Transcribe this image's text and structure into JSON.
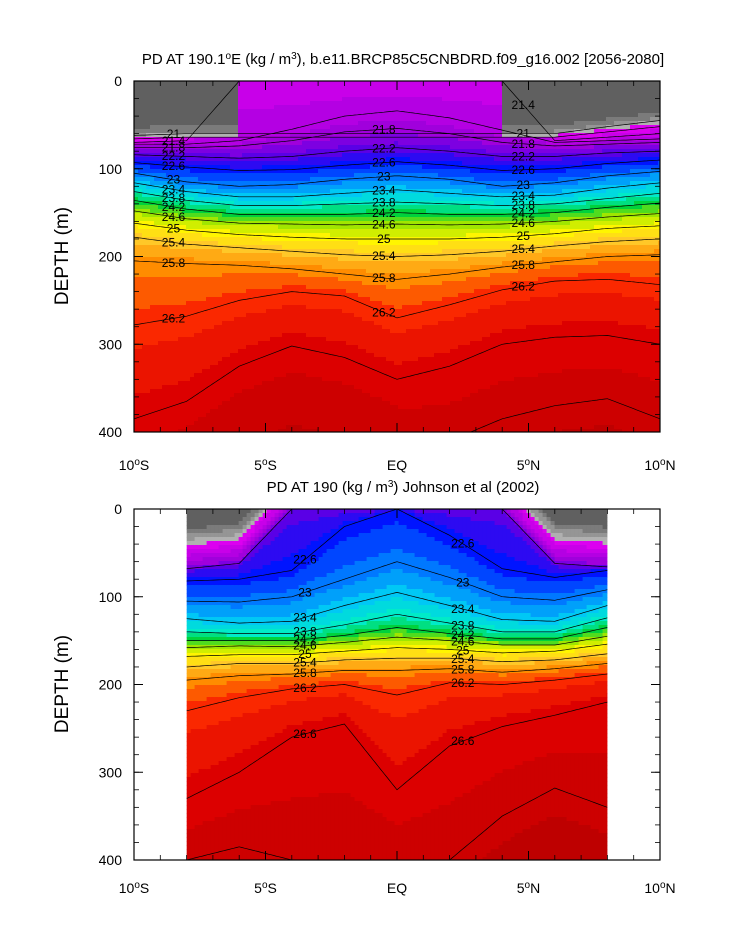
{
  "chart_data": [
    {
      "type": "contour",
      "title": "PD AT 190.1°E (kg / m³), b.e11.BRCP85C5CNBDRD.f09_g16.002 [2056-2080]",
      "title_parts": {
        "pre": "PD AT 190.1",
        "sup1": "o",
        "mid": "E (kg / m",
        "sup2": "3",
        "post": "), b.e11.BRCP85C5CNBDRD.f09_g16.002 [2056-2080]"
      },
      "xlabel": "",
      "ylabel": "DEPTH (m)",
      "xlim": [
        -10,
        10
      ],
      "ylim": [
        400,
        0
      ],
      "x_data_range": [
        -10,
        10
      ],
      "x_ticks": [
        {
          "value": -10,
          "num": "10",
          "sup": "o",
          "hem": "S"
        },
        {
          "value": -5,
          "num": "5",
          "sup": "o",
          "hem": "S"
        },
        {
          "value": 0,
          "num": "EQ",
          "sup": "",
          "hem": ""
        },
        {
          "value": 5,
          "num": "5",
          "sup": "o",
          "hem": "N"
        },
        {
          "value": 10,
          "num": "10",
          "sup": "o",
          "hem": "N"
        }
      ],
      "y_ticks": [
        0,
        100,
        200,
        300,
        400
      ],
      "levels": [
        21,
        21.2,
        21.4,
        21.6,
        21.8,
        22,
        22.2,
        22.4,
        22.6,
        22.8,
        23,
        23.2,
        23.4,
        23.6,
        23.8,
        24,
        24.2,
        24.4,
        24.6,
        24.8,
        25,
        25.2,
        25.4,
        25.6,
        25.8,
        26,
        26.2,
        26.4,
        26.6,
        26.8
      ],
      "isopycnal_depths": {
        "x": [
          -10,
          -8,
          -6,
          -4,
          -2,
          0,
          2,
          4,
          6,
          8,
          10
        ],
        "contours": [
          {
            "level": 21.0,
            "depths": [
              62,
              60,
              null,
              null,
              null,
              null,
              null,
              null,
              60,
              52,
              45
            ]
          },
          {
            "level": 21.2,
            "depths": [
              66,
              64,
              null,
              null,
              null,
              null,
              null,
              null,
              64,
              58,
              52
            ]
          },
          {
            "level": 21.4,
            "depths": [
              70,
              68,
              0,
              0,
              0,
              0,
              0,
              0,
              68,
              64,
              60
            ]
          },
          {
            "level": 21.6,
            "depths": [
              72,
              72,
              68,
              55,
              40,
              34,
              42,
              56,
              70,
              68,
              66
            ]
          },
          {
            "level": 21.8,
            "depths": [
              76,
              76,
              74,
              68,
              58,
              54,
              60,
              70,
              74,
              72,
              70
            ]
          },
          {
            "level": 22.2,
            "depths": [
              84,
              86,
              88,
              86,
              80,
              76,
              80,
              86,
              86,
              82,
              80
            ]
          },
          {
            "level": 22.6,
            "depths": [
              93,
              98,
              102,
              101,
              96,
              92,
              96,
              102,
              100,
              94,
              90
            ]
          },
          {
            "level": 23.0,
            "depths": [
              105,
              115,
              120,
              118,
              112,
              108,
              112,
              120,
              116,
              108,
              103
            ]
          },
          {
            "level": 23.4,
            "depths": [
              116,
              126,
              132,
              132,
              128,
              124,
              128,
              132,
              130,
              122,
              116
            ]
          },
          {
            "level": 23.8,
            "depths": [
              126,
              136,
              142,
              142,
              140,
              138,
              140,
              142,
              140,
              134,
              128
            ]
          },
          {
            "level": 24.2,
            "depths": [
              136,
              146,
              152,
              152,
              152,
              150,
              152,
              152,
              150,
              144,
              139
            ]
          },
          {
            "level": 24.6,
            "depths": [
              148,
              157,
              162,
              163,
              164,
              163,
              164,
              163,
              160,
              155,
              151
            ]
          },
          {
            "level": 25.0,
            "depths": [
              162,
              170,
              175,
              178,
              180,
              180,
              180,
              178,
              174,
              168,
              165
            ]
          },
          {
            "level": 25.4,
            "depths": [
              178,
              186,
              190,
              194,
              198,
              200,
              198,
              194,
              188,
              183,
              180
            ]
          },
          {
            "level": 25.8,
            "depths": [
              205,
              208,
              210,
              214,
              220,
              226,
              220,
              212,
              206,
              200,
              198
            ]
          },
          {
            "level": 26.2,
            "depths": [
              278,
              268,
              250,
              240,
              245,
              270,
              255,
              238,
              228,
              226,
              232
            ]
          },
          {
            "level": 26.6,
            "depths": [
              385,
              365,
              325,
              302,
              315,
              340,
              325,
              300,
              292,
              290,
              300
            ]
          },
          {
            "level": 26.8,
            "depths": [
              null,
              null,
              null,
              null,
              null,
              null,
              410,
              385,
              370,
              362,
              385
            ]
          }
        ]
      },
      "contour_labels": [
        "21",
        "21",
        "21.4",
        "21.4",
        "21.8",
        "21.8",
        "21.8",
        "22.2",
        "22.2",
        "22.2",
        "22.6",
        "22.6",
        "22.6",
        "23",
        "23",
        "23",
        "23.4",
        "23.4",
        "23.4",
        "23.8",
        "23.8",
        "23.8",
        "24.2",
        "24.2",
        "24.2",
        "24.6",
        "24.6",
        "24.6",
        "25",
        "25",
        "25",
        "25.4",
        "25.4",
        "25.4",
        "25.8",
        "25.8",
        "25.8",
        "26.2",
        "26.2",
        "26.2"
      ]
    },
    {
      "type": "contour",
      "title": "PD AT 190 (kg / m³) Johnson et al (2002)",
      "title_parts": {
        "pre": "PD AT 190 (kg / m",
        "sup1": "",
        "mid": "",
        "sup2": "3",
        "post": ") Johnson et al (2002)"
      },
      "xlabel": "",
      "ylabel": "DEPTH (m)",
      "xlim": [
        -10,
        10
      ],
      "ylim": [
        400,
        0
      ],
      "x_data_range": [
        -8,
        8
      ],
      "x_ticks": [
        {
          "value": -10,
          "num": "10",
          "sup": "o",
          "hem": "S"
        },
        {
          "value": -5,
          "num": "5",
          "sup": "o",
          "hem": "S"
        },
        {
          "value": 0,
          "num": "EQ",
          "sup": "",
          "hem": ""
        },
        {
          "value": 5,
          "num": "5",
          "sup": "o",
          "hem": "N"
        },
        {
          "value": 10,
          "num": "10",
          "sup": "o",
          "hem": "N"
        }
      ],
      "y_ticks": [
        0,
        100,
        200,
        300,
        400
      ],
      "levels": [
        21.4,
        21.6,
        21.8,
        22,
        22.2,
        22.4,
        22.6,
        22.8,
        23,
        23.2,
        23.4,
        23.6,
        23.8,
        24,
        24.2,
        24.4,
        24.6,
        24.8,
        25,
        25.2,
        25.4,
        25.6,
        25.8,
        26,
        26.2,
        26.4,
        26.6,
        26.8
      ],
      "isopycnal_depths": {
        "x": [
          -8,
          -6,
          -4,
          -2,
          0,
          2,
          4,
          6,
          8
        ],
        "contours": [
          {
            "level": 22.2,
            "depths": [
              68,
              62,
              0,
              0,
              0,
              0,
              0,
              62,
              66
            ]
          },
          {
            "level": 22.6,
            "depths": [
              82,
              80,
              70,
              20,
              0,
              30,
              68,
              78,
              70
            ]
          },
          {
            "level": 23.0,
            "depths": [
              105,
              106,
              100,
              80,
              60,
              78,
              100,
              104,
              92
            ]
          },
          {
            "level": 23.4,
            "depths": [
              125,
              130,
              128,
              110,
              95,
              110,
              126,
              128,
              110
            ]
          },
          {
            "level": 23.8,
            "depths": [
              140,
              142,
              142,
              132,
              120,
              130,
              140,
              140,
              124
            ]
          },
          {
            "level": 24.2,
            "depths": [
              150,
              150,
              150,
              144,
              135,
              142,
              148,
              148,
              135
            ]
          },
          {
            "level": 24.6,
            "depths": [
              158,
              156,
              157,
              152,
              146,
              150,
              155,
              155,
              145
            ]
          },
          {
            "level": 25.0,
            "depths": [
              168,
              166,
              166,
              162,
              158,
              160,
              164,
              162,
              154
            ]
          },
          {
            "level": 25.4,
            "depths": [
              180,
              176,
              176,
              172,
              170,
              170,
              174,
              172,
              165
            ]
          },
          {
            "level": 25.8,
            "depths": [
              195,
              190,
              188,
              184,
              184,
              182,
              186,
              182,
              176
            ]
          },
          {
            "level": 26.2,
            "depths": [
              230,
              215,
              205,
              200,
              212,
              198,
              200,
              195,
              188
            ]
          },
          {
            "level": 26.6,
            "depths": [
              330,
              300,
              260,
              245,
              320,
              270,
              248,
              235,
              220
            ]
          },
          {
            "level": 26.8,
            "depths": [
              400,
              385,
              400,
              400,
              400,
              400,
              350,
              318,
              340
            ]
          }
        ]
      },
      "contour_labels": [
        "22.6",
        "22.6",
        "23",
        "23",
        "23.4",
        "23.4",
        "23.8",
        "23.8",
        "24.2",
        "24.2",
        "24.6",
        "24.6",
        "25",
        "25",
        "25.4",
        "25.4",
        "25.8",
        "25.8",
        "26.2",
        "26.2",
        "26.6",
        "26.6",
        "26.6"
      ]
    }
  ]
}
